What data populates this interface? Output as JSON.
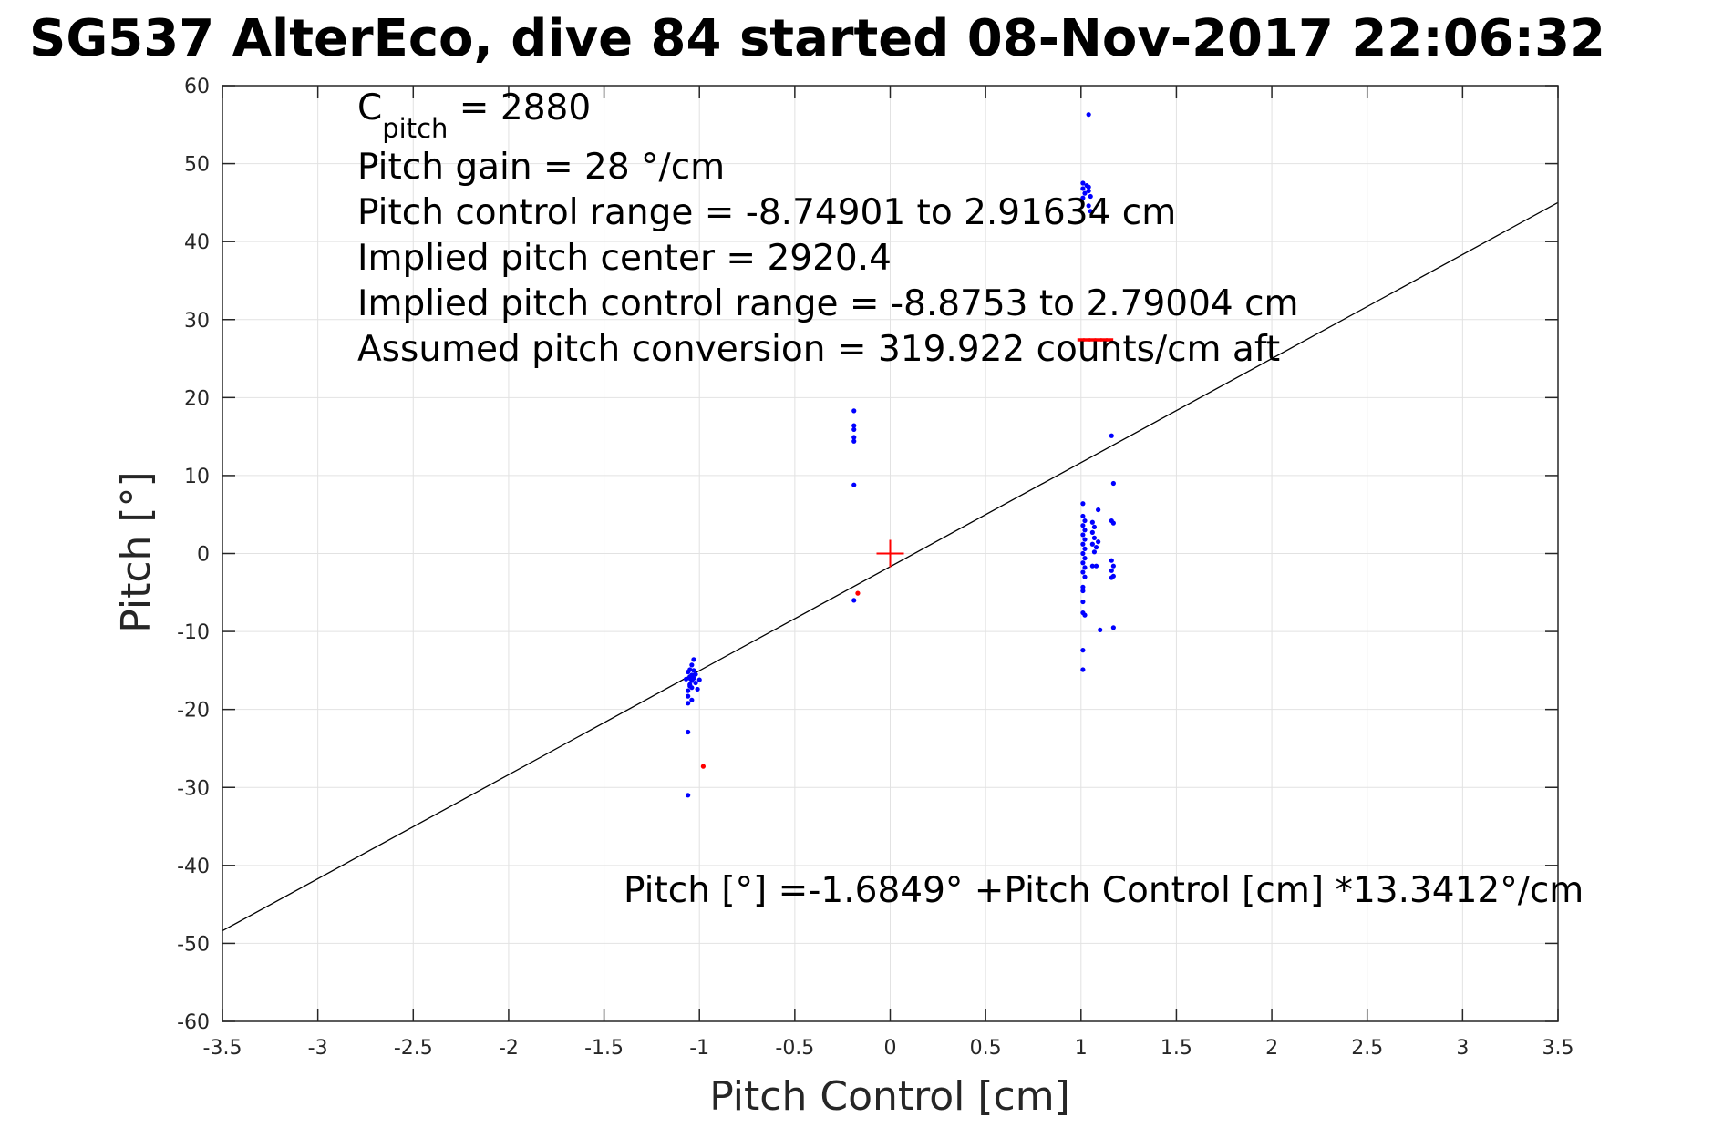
{
  "chart_data": {
    "type": "scatter",
    "title": "SG537 AlterEco, dive 84 started 08-Nov-2017 22:06:32",
    "xlabel": "Pitch Control [cm]",
    "ylabel": "Pitch [°]",
    "xlim": [
      -3.5,
      3.5
    ],
    "ylim": [
      -60,
      60
    ],
    "xticks": [
      -3.5,
      -3,
      -2.5,
      -2,
      -1.5,
      -1,
      -0.5,
      0,
      0.5,
      1,
      1.5,
      2,
      2.5,
      3,
      3.5
    ],
    "yticks": [
      -60,
      -50,
      -40,
      -30,
      -20,
      -10,
      0,
      10,
      20,
      30,
      40,
      50,
      60
    ],
    "xtick_labels": [
      "-3.5",
      "-3",
      "-2.5",
      "-2",
      "-1.5",
      "-1",
      "-0.5",
      "0",
      "0.5",
      "1",
      "1.5",
      "2",
      "2.5",
      "3",
      "3.5"
    ],
    "ytick_labels": [
      "-60",
      "-50",
      "-40",
      "-30",
      "-20",
      "-10",
      "0",
      "10",
      "20",
      "30",
      "40",
      "50",
      "60"
    ],
    "grid": true,
    "colors": {
      "blue": "#0000ff",
      "red": "#ff0000",
      "line": "#000000",
      "grid": "#e2e2e2",
      "axes": "#262626"
    },
    "series": [
      {
        "marker": "dot",
        "color": "#0000ff",
        "points": [
          [
            -1.06,
            -15.2
          ],
          [
            -1.05,
            -15.8
          ],
          [
            -1.04,
            -16.3
          ],
          [
            -1.03,
            -15.0
          ],
          [
            -1.05,
            -16.8
          ],
          [
            -1.04,
            -17.2
          ],
          [
            -1.06,
            -17.6
          ],
          [
            -1.03,
            -16.0
          ],
          [
            -1.02,
            -15.5
          ],
          [
            -1.05,
            -14.9
          ],
          [
            -1.04,
            -14.3
          ],
          [
            -1.03,
            -13.6
          ],
          [
            -1.06,
            -18.3
          ],
          [
            -1.04,
            -18.8
          ],
          [
            -1.06,
            -19.2
          ],
          [
            -1.01,
            -17.4
          ],
          [
            -1.0,
            -16.2
          ],
          [
            -1.02,
            -16.6
          ],
          [
            -1.07,
            -16.1
          ],
          [
            -1.06,
            -22.9
          ],
          [
            -1.06,
            -31.0
          ],
          [
            -1.05,
            -16.0
          ],
          [
            -1.04,
            -15.6
          ],
          [
            -1.05,
            -17.0
          ],
          [
            -0.19,
            18.3
          ],
          [
            -0.19,
            16.4
          ],
          [
            -0.19,
            15.9
          ],
          [
            -0.19,
            14.9
          ],
          [
            -0.19,
            14.4
          ],
          [
            -0.19,
            8.8
          ],
          [
            -0.19,
            -6.0
          ],
          [
            1.01,
            47.5
          ],
          [
            1.01,
            46.8
          ],
          [
            1.02,
            46.2
          ],
          [
            1.01,
            45.6
          ],
          [
            1.03,
            47.2
          ],
          [
            1.04,
            46.5
          ],
          [
            1.05,
            45.8
          ],
          [
            1.04,
            44.6
          ],
          [
            1.05,
            43.9
          ],
          [
            1.04,
            47.0
          ],
          [
            1.04,
            56.3
          ],
          [
            1.01,
            6.4
          ],
          [
            1.01,
            4.8
          ],
          [
            1.02,
            4.2
          ],
          [
            1.01,
            3.6
          ],
          [
            1.02,
            3.0
          ],
          [
            1.01,
            2.4
          ],
          [
            1.02,
            1.8
          ],
          [
            1.01,
            1.2
          ],
          [
            1.02,
            0.6
          ],
          [
            1.01,
            0.0
          ],
          [
            1.02,
            -0.6
          ],
          [
            1.01,
            -1.2
          ],
          [
            1.02,
            -1.8
          ],
          [
            1.01,
            -2.4
          ],
          [
            1.02,
            -3.0
          ],
          [
            1.01,
            -4.3
          ],
          [
            1.01,
            -4.8
          ],
          [
            1.01,
            -6.2
          ],
          [
            1.01,
            -7.6
          ],
          [
            1.02,
            -7.9
          ],
          [
            1.01,
            -12.4
          ],
          [
            1.01,
            -14.9
          ],
          [
            1.06,
            4.0
          ],
          [
            1.07,
            3.4
          ],
          [
            1.06,
            2.7
          ],
          [
            1.07,
            2.0
          ],
          [
            1.06,
            1.2
          ],
          [
            1.08,
            0.8
          ],
          [
            1.07,
            0.2
          ],
          [
            1.06,
            -1.6
          ],
          [
            1.08,
            -1.6
          ],
          [
            1.09,
            5.6
          ],
          [
            1.09,
            1.5
          ],
          [
            1.1,
            -9.8
          ],
          [
            1.16,
            15.1
          ],
          [
            1.17,
            9.0
          ],
          [
            1.16,
            4.2
          ],
          [
            1.17,
            3.9
          ],
          [
            1.16,
            -0.9
          ],
          [
            1.17,
            -1.6
          ],
          [
            1.16,
            -2.2
          ],
          [
            1.17,
            -2.9
          ],
          [
            1.16,
            -3.1
          ],
          [
            1.17,
            -9.5
          ]
        ]
      },
      {
        "marker": "dot",
        "color": "#ff0000",
        "points": [
          [
            -0.98,
            -27.3
          ],
          [
            -0.17,
            -5.1
          ]
        ]
      },
      {
        "marker": "dash",
        "color": "#ff0000",
        "points": [
          [
            1.0,
            27.4
          ],
          [
            1.03,
            27.4
          ],
          [
            1.06,
            27.4
          ],
          [
            1.09,
            27.4
          ],
          [
            1.12,
            27.4
          ],
          [
            1.15,
            27.4
          ]
        ]
      },
      {
        "marker": "plus",
        "color": "#ff0000",
        "points": [
          [
            0,
            0
          ]
        ]
      }
    ],
    "fit_line": {
      "intercept": -1.6849,
      "slope": 13.3412
    },
    "annotations": {
      "c_pitch_main": "C",
      "c_pitch_sub": "pitch",
      "c_pitch_value": " = 2880",
      "pitch_gain": "Pitch gain = 28 °/cm",
      "pitch_control_range": "Pitch control range = -8.74901 to 2.91634 cm",
      "implied_center": "Implied pitch center = 2920.4",
      "implied_range": "Implied pitch control range = -8.8753 to 2.79004 cm",
      "pitch_conversion": "Assumed pitch conversion = 319.922 counts/cm aft",
      "fit_equation": "Pitch [°] =-1.6849° +Pitch Control [cm] *13.3412°/cm"
    }
  }
}
